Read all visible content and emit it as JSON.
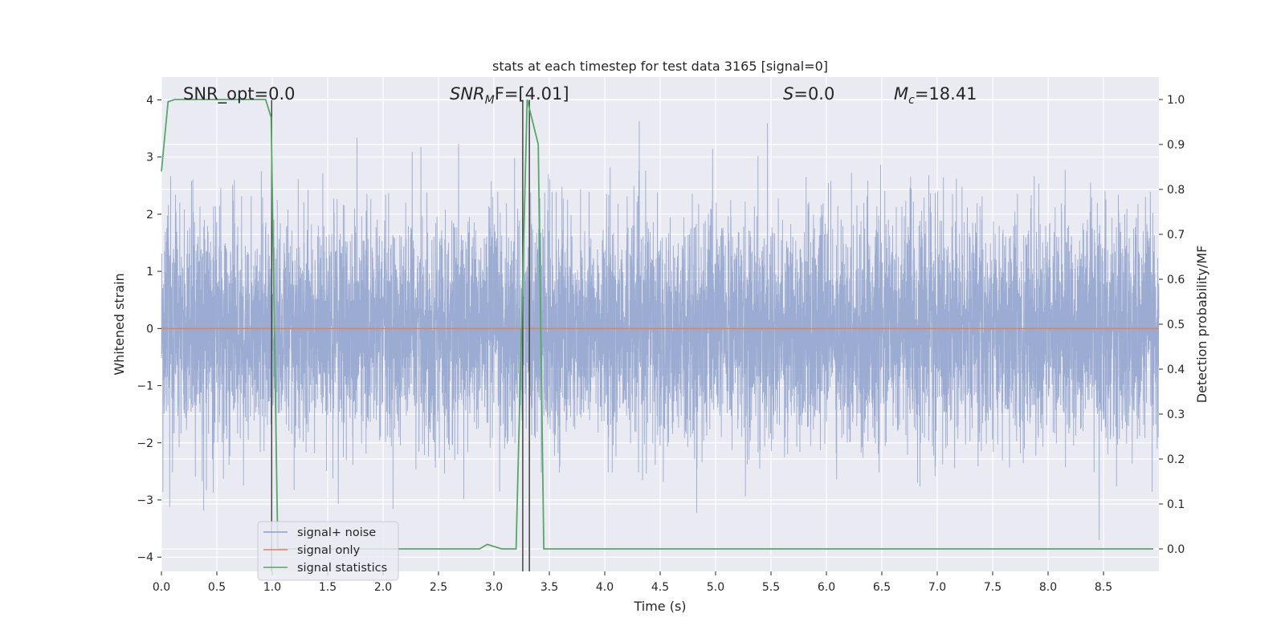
{
  "chart_data": {
    "type": "line",
    "title": "stats at each timestep for test data 3165 [signal=0]",
    "xlabel": "Time (s)",
    "ylabel": "Whitened strain",
    "y2label": "Detection probability/MF",
    "xlim": [
      0.0,
      9.0
    ],
    "ylim": [
      -4.25,
      4.4
    ],
    "y2lim": [
      -0.05,
      1.05
    ],
    "xticks": [
      0.0,
      0.5,
      1.0,
      1.5,
      2.0,
      2.5,
      3.0,
      3.5,
      4.0,
      4.5,
      5.0,
      5.5,
      6.0,
      6.5,
      7.0,
      7.5,
      8.0,
      8.5
    ],
    "xtick_labels": [
      "0.0",
      "0.5",
      "1.0",
      "1.5",
      "2.0",
      "2.5",
      "3.0",
      "3.5",
      "4.0",
      "4.5",
      "5.0",
      "5.5",
      "6.0",
      "6.5",
      "7.0",
      "7.5",
      "8.0",
      "8.5"
    ],
    "yticks": [
      4,
      3,
      2,
      1,
      0,
      -1,
      -2,
      -3,
      -4
    ],
    "ytick_labels": [
      "4",
      "3",
      "2",
      "1",
      "0",
      "−1",
      "−2",
      "−3",
      "−4"
    ],
    "y2ticks": [
      1.0,
      0.9,
      0.8,
      0.7,
      0.6,
      0.5,
      0.4,
      0.3,
      0.2,
      0.1,
      0.0
    ],
    "y2tick_labels": [
      "1.0",
      "0.9",
      "0.8",
      "0.7",
      "0.6",
      "0.5",
      "0.4",
      "0.3",
      "0.2",
      "0.1",
      "0.0"
    ],
    "grid": true,
    "legend_position": "bottom-left",
    "series": [
      {
        "name": "signal+ noise",
        "axis": "left",
        "color": "#8da0cb",
        "t_start": 0.0,
        "t_end": 9.0,
        "n_samples": 8000,
        "envelope": {
          "median_abs": 1.5,
          "max": 3.8,
          "min": -3.7
        }
      },
      {
        "name": "signal only",
        "axis": "left",
        "color": "#dd8452",
        "x": [
          0.0,
          9.0
        ],
        "y": [
          0.0,
          0.0
        ]
      },
      {
        "name": "signal statistics",
        "axis": "right",
        "color": "#55a868",
        "x": [
          0.0,
          0.06,
          0.12,
          0.5,
          0.94,
          0.99,
          1.05,
          1.12,
          1.5,
          2.0,
          2.5,
          2.87,
          2.94,
          3.07,
          3.2,
          3.25,
          3.3,
          3.4,
          3.45,
          4.0,
          5.0,
          6.0,
          7.0,
          8.0,
          8.95
        ],
        "y": [
          0.84,
          0.995,
          1.0,
          1.0,
          1.0,
          0.96,
          0.0,
          0.0,
          0.0,
          0.0,
          0.0,
          0.0,
          0.01,
          0.0,
          0.0,
          0.5,
          1.0,
          0.9,
          0.0,
          0.0,
          0.0,
          0.0,
          0.0,
          0.0,
          0.0
        ]
      }
    ],
    "vlines": [
      {
        "x": 0.995,
        "y_from": -4.25,
        "y_to": 4.0,
        "color": "#444444"
      },
      {
        "x": 3.26,
        "y_from": -4.25,
        "y_to": 4.0,
        "color": "#444444"
      },
      {
        "x": 3.32,
        "y_from": -4.25,
        "y_to": 4.0,
        "color": "#444444"
      }
    ],
    "annotations": [
      {
        "pre": "SNR_opt=0.0",
        "italic": "",
        "sub": "",
        "post": ""
      },
      {
        "pre": "",
        "italic": "SNR",
        "sub": "M",
        "post": "F=[4.01]"
      },
      {
        "pre": "",
        "italic": "S",
        "sub": "",
        "post": "=0.0"
      },
      {
        "pre": "",
        "italic": "M",
        "sub": "c",
        "post": "=18.41"
      }
    ],
    "legend": [
      "signal+ noise",
      "signal only",
      "signal statistics"
    ]
  },
  "colors": {
    "axes_bg": "#eaeaf2",
    "grid": "#ffffff",
    "text": "#262626",
    "noise": "#8da0cb",
    "signal": "#dd8452",
    "stats": "#55a868",
    "marker": "#444444"
  }
}
